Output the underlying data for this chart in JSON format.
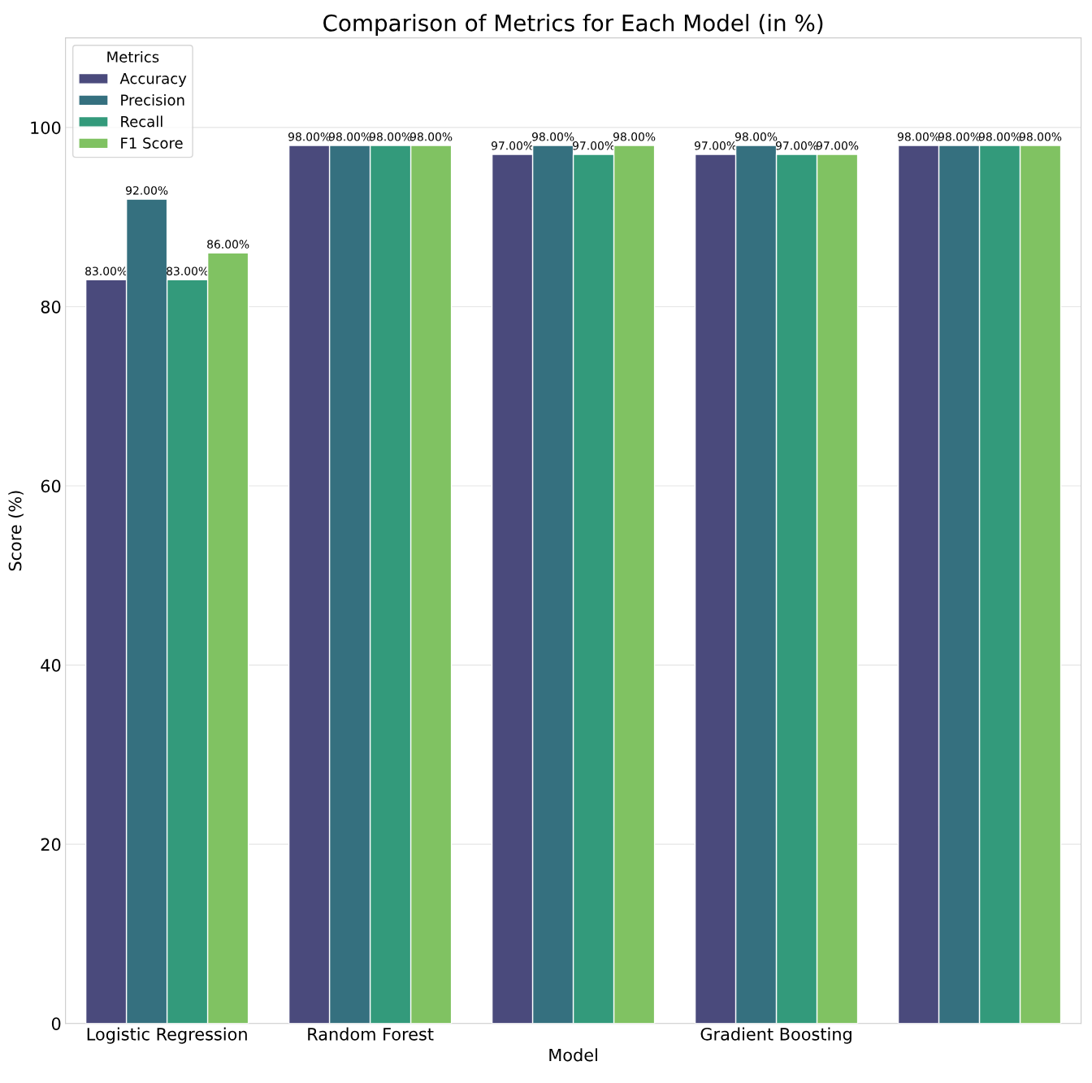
{
  "chart_data": {
    "type": "bar",
    "title": "Comparison of Metrics for Each Model (in %)",
    "xlabel": "Model",
    "ylabel": "Score (%)",
    "legend_title": "Metrics",
    "categories": [
      "Logistic Regression",
      "Random Forest",
      null,
      "Gradient Boosting",
      null
    ],
    "series": [
      {
        "name": "Accuracy",
        "color": "#4a4a7c",
        "values": [
          83,
          98,
          97,
          97,
          98
        ],
        "value_labels": [
          "83.00%",
          "98.00%",
          "97.00%",
          "97.00%",
          "98.00%"
        ]
      },
      {
        "name": "Precision",
        "color": "#35707f",
        "values": [
          92,
          98,
          98,
          98,
          98
        ],
        "value_labels": [
          "92.00%",
          "98.00%",
          "98.00%",
          "98.00%",
          "98.00%"
        ]
      },
      {
        "name": "Recall",
        "color": "#339a7b",
        "values": [
          83,
          98,
          97,
          97,
          98
        ],
        "value_labels": [
          "83.00%",
          "98.00%",
          "97.00%",
          "97.00%",
          "98.00%"
        ]
      },
      {
        "name": "F1 Score",
        "color": "#80c262",
        "values": [
          86,
          98,
          98,
          97,
          98
        ],
        "value_labels": [
          "86.00%",
          "98.00%",
          "98.00%",
          "97.00%",
          "98.00%"
        ]
      }
    ],
    "ylim": [
      0,
      110
    ],
    "yticks": [
      0,
      20,
      40,
      60,
      80,
      100
    ],
    "grid": "y",
    "legend": "top left"
  }
}
